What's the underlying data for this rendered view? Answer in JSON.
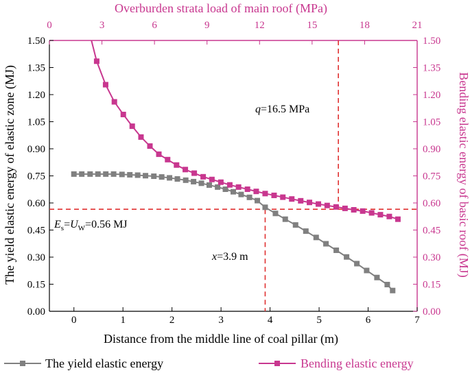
{
  "chart_data": {
    "type": "line",
    "title": "",
    "xlabel": "Distance from the middle line of coal pillar (m)",
    "x2label": "Overburden strata load of main roof (MPa)",
    "ylabel": "The yield elastic energy of elastic zone (MJ)",
    "y2label": "Bending elastic energy of basic roof (MJ)",
    "xlim": [
      -0.5,
      7
    ],
    "x2lim": [
      0,
      21
    ],
    "ylim": [
      0,
      1.5
    ],
    "y2lim": [
      0,
      1.5
    ],
    "x_ticks": [
      "0",
      "1",
      "2",
      "3",
      "4",
      "5",
      "6",
      "7"
    ],
    "x_tick_values": [
      0,
      1,
      2,
      3,
      4,
      5,
      6,
      7
    ],
    "x2_ticks": [
      "0",
      "3",
      "6",
      "9",
      "12",
      "15",
      "18",
      "21"
    ],
    "x2_tick_values": [
      0,
      3,
      6,
      9,
      12,
      15,
      18,
      21
    ],
    "y_ticks": [
      "0.00",
      "0.15",
      "0.30",
      "0.45",
      "0.60",
      "0.75",
      "0.90",
      "1.05",
      "1.20",
      "1.35",
      "1.50"
    ],
    "y_tick_values": [
      0,
      0.15,
      0.3,
      0.45,
      0.6,
      0.75,
      0.9,
      1.05,
      1.2,
      1.35,
      1.5
    ],
    "series": [
      {
        "name": "The yield elastic energy",
        "axis": "bottom-left",
        "color": "#808080",
        "x": [
          0.0,
          0.16,
          0.33,
          0.49,
          0.65,
          0.81,
          0.98,
          1.14,
          1.3,
          1.46,
          1.63,
          1.79,
          1.95,
          2.11,
          2.28,
          2.44,
          2.6,
          2.76,
          2.93,
          3.09,
          3.25,
          3.41,
          3.58,
          3.74,
          3.9,
          4.11,
          4.31,
          4.52,
          4.73,
          4.94,
          5.14,
          5.35,
          5.56,
          5.77,
          5.97,
          6.18,
          6.39,
          6.5
        ],
        "values": [
          0.76,
          0.76,
          0.76,
          0.76,
          0.76,
          0.76,
          0.758,
          0.756,
          0.754,
          0.751,
          0.748,
          0.744,
          0.739,
          0.733,
          0.726,
          0.718,
          0.709,
          0.699,
          0.688,
          0.676,
          0.662,
          0.647,
          0.631,
          0.613,
          0.576,
          0.542,
          0.51,
          0.478,
          0.444,
          0.409,
          0.374,
          0.338,
          0.301,
          0.264,
          0.226,
          0.187,
          0.148,
          0.115
        ]
      },
      {
        "name": "Bending elastic energy",
        "axis": "top-right",
        "color": "#c8378f",
        "x": [
          2.4,
          2.7,
          3.21,
          3.71,
          4.22,
          4.73,
          5.23,
          5.74,
          6.25,
          6.75,
          7.26,
          7.76,
          8.27,
          8.78,
          9.28,
          9.79,
          10.3,
          10.8,
          11.31,
          11.81,
          12.32,
          12.83,
          13.33,
          13.84,
          14.35,
          14.85,
          15.36,
          15.86,
          16.37,
          16.88,
          17.38,
          17.89,
          18.4,
          18.9,
          19.41,
          19.9
        ],
        "values": [
          1.5,
          1.385,
          1.255,
          1.16,
          1.09,
          1.025,
          0.965,
          0.915,
          0.87,
          0.84,
          0.81,
          0.785,
          0.765,
          0.745,
          0.73,
          0.715,
          0.7,
          0.688,
          0.676,
          0.664,
          0.652,
          0.642,
          0.632,
          0.622,
          0.612,
          0.603,
          0.594,
          0.586,
          0.578,
          0.57,
          0.562,
          0.555,
          0.545,
          0.535,
          0.525,
          0.51
        ]
      }
    ],
    "annotations": [
      {
        "text_parts": [
          "q",
          "=16.5 MPa"
        ],
        "kind": "vertical-top",
        "value": 16.5,
        "y_to": 0.565
      },
      {
        "text_parts": [
          "x",
          "=3.9 m"
        ],
        "kind": "vertical-bottom",
        "value": 3.9,
        "y_to": 0.565
      },
      {
        "text_parts": [
          "E",
          "s",
          "=",
          "U",
          "W",
          "=0.56 MJ"
        ],
        "kind": "horizontal",
        "value": 0.565
      }
    ],
    "legend": [
      {
        "label": "The yield elastic energy",
        "color": "#808080"
      },
      {
        "label": "Bending elastic energy",
        "color": "#c8378f"
      }
    ],
    "legend_position": "bottom",
    "grid": false
  }
}
